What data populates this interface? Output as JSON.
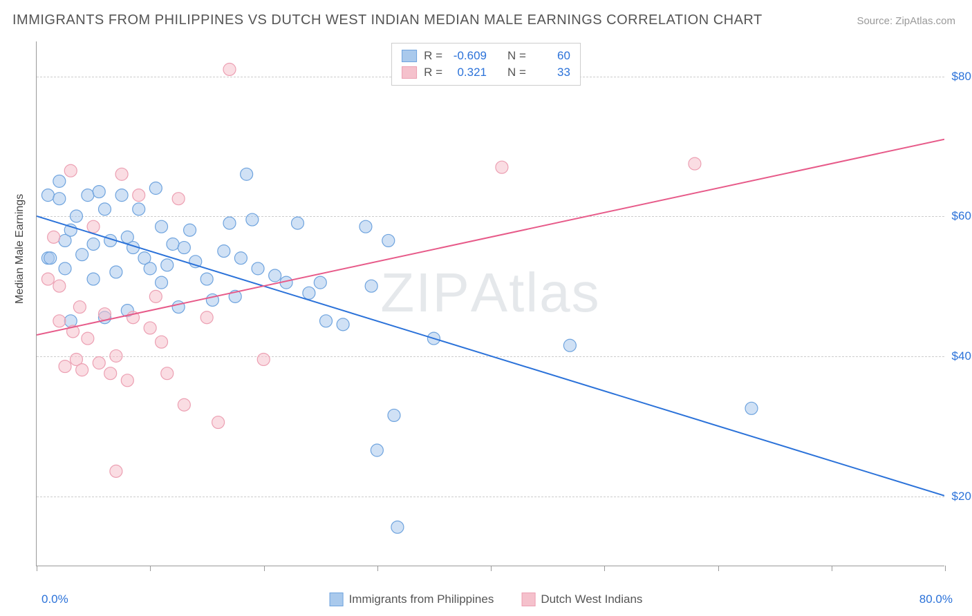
{
  "title": "IMMIGRANTS FROM PHILIPPINES VS DUTCH WEST INDIAN MEDIAN MALE EARNINGS CORRELATION CHART",
  "source": "Source: ZipAtlas.com",
  "watermark_a": "ZIP",
  "watermark_b": "Atlas",
  "chart": {
    "type": "scatter",
    "xlim": [
      0,
      80
    ],
    "ylim": [
      10000,
      85000
    ],
    "x_label_min": "0.0%",
    "x_label_max": "80.0%",
    "y_axis_title": "Median Male Earnings",
    "y_gridlines": [
      20000,
      40000,
      60000,
      80000
    ],
    "y_tick_labels": [
      "$20,000",
      "$40,000",
      "$60,000",
      "$80,000"
    ],
    "x_ticks": [
      0,
      10,
      20,
      30,
      40,
      50,
      60,
      70,
      80
    ],
    "background_color": "#ffffff",
    "grid_color": "#cccccc",
    "axis_color": "#999999",
    "tick_label_color": "#2b72d9",
    "series": [
      {
        "name": "Immigrants from Philippines",
        "color_fill": "#a9c9ec",
        "color_stroke": "#6ea3de",
        "marker_radius": 9,
        "fill_opacity": 0.55,
        "R": "-0.609",
        "N": "60",
        "trend": {
          "x1": 0,
          "y1": 60000,
          "x2": 80,
          "y2": 20000,
          "color": "#2b72d9",
          "width": 2
        },
        "points": [
          [
            1,
            63000
          ],
          [
            1,
            54000
          ],
          [
            2,
            62500
          ],
          [
            2,
            65000
          ],
          [
            2.5,
            56500
          ],
          [
            2.5,
            52500
          ],
          [
            3,
            45000
          ],
          [
            3,
            58000
          ],
          [
            3.5,
            60000
          ],
          [
            4,
            54500
          ],
          [
            4.5,
            63000
          ],
          [
            5,
            56000
          ],
          [
            5,
            51000
          ],
          [
            5.5,
            63500
          ],
          [
            6,
            61000
          ],
          [
            6,
            45500
          ],
          [
            6.5,
            56500
          ],
          [
            7,
            52000
          ],
          [
            7.5,
            63000
          ],
          [
            8,
            57000
          ],
          [
            8,
            46500
          ],
          [
            8.5,
            55500
          ],
          [
            9,
            61000
          ],
          [
            9.5,
            54000
          ],
          [
            10,
            52500
          ],
          [
            10.5,
            64000
          ],
          [
            11,
            58500
          ],
          [
            11,
            50500
          ],
          [
            11.5,
            53000
          ],
          [
            12,
            56000
          ],
          [
            12.5,
            47000
          ],
          [
            13,
            55500
          ],
          [
            13.5,
            58000
          ],
          [
            14,
            53500
          ],
          [
            15,
            51000
          ],
          [
            15.5,
            48000
          ],
          [
            16.5,
            55000
          ],
          [
            17,
            59000
          ],
          [
            17.5,
            48500
          ],
          [
            18,
            54000
          ],
          [
            18.5,
            66000
          ],
          [
            19,
            59500
          ],
          [
            19.5,
            52500
          ],
          [
            21,
            51500
          ],
          [
            22,
            50500
          ],
          [
            23,
            59000
          ],
          [
            24,
            49000
          ],
          [
            25,
            50500
          ],
          [
            25.5,
            45000
          ],
          [
            27,
            44500
          ],
          [
            29,
            58500
          ],
          [
            29.5,
            50000
          ],
          [
            30,
            26500
          ],
          [
            31,
            56500
          ],
          [
            31.5,
            31500
          ],
          [
            31.8,
            15500
          ],
          [
            35,
            42500
          ],
          [
            47,
            41500
          ],
          [
            63,
            32500
          ],
          [
            1.2,
            54000
          ]
        ]
      },
      {
        "name": "Dutch West Indians",
        "color_fill": "#f5c1cc",
        "color_stroke": "#ec9fb2",
        "marker_radius": 9,
        "fill_opacity": 0.55,
        "R": "0.321",
        "N": "33",
        "trend": {
          "x1": 0,
          "y1": 43000,
          "x2": 80,
          "y2": 71000,
          "color": "#e75a89",
          "width": 2
        },
        "points": [
          [
            1,
            51000
          ],
          [
            1.5,
            57000
          ],
          [
            2,
            45000
          ],
          [
            2,
            50000
          ],
          [
            2.5,
            38500
          ],
          [
            3,
            66500
          ],
          [
            3.2,
            43500
          ],
          [
            3.5,
            39500
          ],
          [
            3.8,
            47000
          ],
          [
            4,
            38000
          ],
          [
            4.5,
            42500
          ],
          [
            5,
            58500
          ],
          [
            5.5,
            39000
          ],
          [
            6,
            46000
          ],
          [
            6.5,
            37500
          ],
          [
            7,
            40000
          ],
          [
            7,
            23500
          ],
          [
            7.5,
            66000
          ],
          [
            8,
            36500
          ],
          [
            8.5,
            45500
          ],
          [
            9,
            63000
          ],
          [
            10,
            44000
          ],
          [
            10.5,
            48500
          ],
          [
            11,
            42000
          ],
          [
            11.5,
            37500
          ],
          [
            12.5,
            62500
          ],
          [
            13,
            33000
          ],
          [
            15,
            45500
          ],
          [
            16,
            30500
          ],
          [
            17,
            81000
          ],
          [
            20,
            39500
          ],
          [
            41,
            67000
          ],
          [
            58,
            67500
          ]
        ]
      }
    ]
  },
  "legend": {
    "series_a": "Immigrants from Philippines",
    "series_b": "Dutch West Indians",
    "R_label": "R =",
    "N_label": "N ="
  }
}
